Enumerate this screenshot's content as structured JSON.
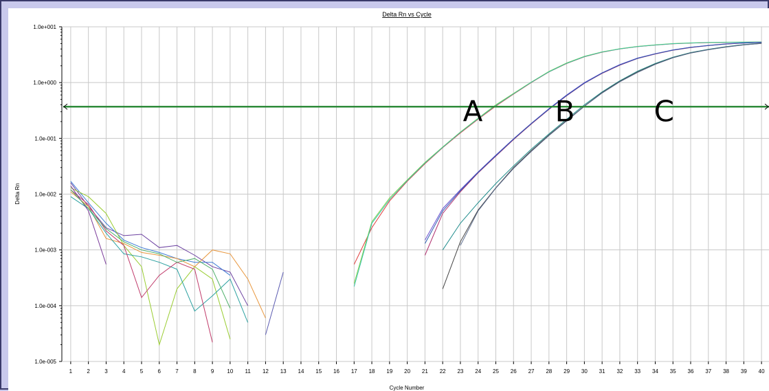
{
  "chart_data": {
    "type": "line",
    "title": "Delta Rn vs Cycle",
    "xlabel": "Cycle Number",
    "ylabel": "Delta Rn",
    "yscale": "log",
    "xlim": [
      0.5,
      40.5
    ],
    "ylim": [
      1e-05,
      10
    ],
    "grid": true,
    "x_ticks": [
      "1",
      "2",
      "3",
      "4",
      "5",
      "6",
      "7",
      "8",
      "9",
      "10",
      "11",
      "12",
      "13",
      "14",
      "15",
      "16",
      "17",
      "18",
      "19",
      "20",
      "21",
      "22",
      "23",
      "24",
      "25",
      "26",
      "27",
      "28",
      "29",
      "30",
      "31",
      "32",
      "33",
      "34",
      "35",
      "36",
      "37",
      "38",
      "39",
      "40"
    ],
    "y_ticks": [
      {
        "value": 10,
        "label": "1.0e+001"
      },
      {
        "value": 1,
        "label": "1.0e+000"
      },
      {
        "value": 0.1,
        "label": "1.0e-001"
      },
      {
        "value": 0.01,
        "label": "1.0e-002"
      },
      {
        "value": 0.001,
        "label": "1.0e-003"
      },
      {
        "value": 0.0001,
        "label": "1.0e-004"
      },
      {
        "value": 1e-05,
        "label": "1.0e-005"
      }
    ],
    "threshold": {
      "value": 0.37,
      "color": "#2e8b3a"
    },
    "annotations": [
      {
        "text": "A",
        "x": 23.7,
        "y": 0.3
      },
      {
        "text": "B",
        "x": 28.9,
        "y": 0.3
      },
      {
        "text": "C",
        "x": 34.5,
        "y": 0.3
      }
    ],
    "series": [
      {
        "color": "#e03c3c",
        "points": [
          [
            17,
            0.00055
          ],
          [
            18,
            0.0025
          ],
          [
            19,
            0.0075
          ],
          [
            20,
            0.017
          ],
          [
            21,
            0.035
          ],
          [
            22,
            0.068
          ],
          [
            23,
            0.125
          ],
          [
            24,
            0.22
          ],
          [
            25,
            0.38
          ],
          [
            26,
            0.62
          ],
          [
            27,
            1.0
          ],
          [
            28,
            1.55
          ],
          [
            29,
            2.2
          ],
          [
            30,
            2.9
          ],
          [
            31,
            3.5
          ],
          [
            32,
            4.0
          ],
          [
            33,
            4.4
          ],
          [
            34,
            4.7
          ],
          [
            35,
            4.95
          ],
          [
            36,
            5.1
          ],
          [
            37,
            5.2
          ],
          [
            38,
            5.25
          ],
          [
            39,
            5.28
          ],
          [
            40,
            5.3
          ]
        ]
      },
      {
        "color": "#7fd14a",
        "points": [
          [
            17,
            0.00025
          ],
          [
            18,
            0.0032
          ],
          [
            19,
            0.0085
          ],
          [
            20,
            0.018
          ],
          [
            21,
            0.037
          ],
          [
            22,
            0.07
          ],
          [
            23,
            0.13
          ],
          [
            24,
            0.23
          ],
          [
            25,
            0.4
          ],
          [
            26,
            0.64
          ],
          [
            27,
            1.02
          ],
          [
            28,
            1.58
          ],
          [
            29,
            2.25
          ],
          [
            30,
            2.95
          ],
          [
            31,
            3.55
          ],
          [
            32,
            4.05
          ],
          [
            33,
            4.45
          ],
          [
            34,
            4.75
          ],
          [
            35,
            5.0
          ],
          [
            36,
            5.15
          ],
          [
            37,
            5.25
          ],
          [
            38,
            5.3
          ],
          [
            39,
            5.33
          ],
          [
            40,
            5.35
          ]
        ]
      },
      {
        "color": "#3ac4a8",
        "points": [
          [
            17,
            0.00022
          ],
          [
            18,
            0.003
          ],
          [
            19,
            0.008
          ],
          [
            20,
            0.0175
          ],
          [
            21,
            0.036
          ],
          [
            22,
            0.069
          ],
          [
            23,
            0.128
          ],
          [
            24,
            0.225
          ],
          [
            25,
            0.39
          ],
          [
            26,
            0.63
          ],
          [
            27,
            1.01
          ],
          [
            28,
            1.56
          ],
          [
            29,
            2.22
          ],
          [
            30,
            2.92
          ],
          [
            31,
            3.52
          ],
          [
            32,
            4.02
          ],
          [
            33,
            4.42
          ],
          [
            34,
            4.72
          ],
          [
            35,
            4.97
          ],
          [
            36,
            5.12
          ],
          [
            37,
            5.22
          ],
          [
            38,
            5.27
          ],
          [
            39,
            5.3
          ],
          [
            40,
            5.32
          ]
        ]
      },
      {
        "color": "#6a4fd0",
        "points": [
          [
            21,
            0.0015
          ],
          [
            22,
            0.0055
          ],
          [
            23,
            0.012
          ],
          [
            24,
            0.025
          ],
          [
            25,
            0.05
          ],
          [
            26,
            0.098
          ],
          [
            27,
            0.185
          ],
          [
            28,
            0.34
          ],
          [
            29,
            0.6
          ],
          [
            30,
            1.0
          ],
          [
            31,
            1.5
          ],
          [
            32,
            2.1
          ],
          [
            33,
            2.75
          ],
          [
            34,
            3.3
          ],
          [
            35,
            3.85
          ],
          [
            36,
            4.3
          ],
          [
            37,
            4.65
          ],
          [
            38,
            4.95
          ],
          [
            39,
            5.15
          ],
          [
            40,
            5.3
          ]
        ]
      },
      {
        "color": "#b03070",
        "points": [
          [
            21,
            0.0008
          ],
          [
            22,
            0.0045
          ],
          [
            23,
            0.011
          ],
          [
            24,
            0.024
          ],
          [
            25,
            0.048
          ],
          [
            26,
            0.095
          ],
          [
            27,
            0.18
          ],
          [
            28,
            0.33
          ],
          [
            29,
            0.58
          ],
          [
            30,
            0.97
          ],
          [
            31,
            1.46
          ],
          [
            32,
            2.05
          ],
          [
            33,
            2.7
          ],
          [
            34,
            3.25
          ],
          [
            35,
            3.8
          ],
          [
            36,
            4.25
          ],
          [
            37,
            4.6
          ],
          [
            38,
            4.9
          ],
          [
            39,
            5.1
          ],
          [
            40,
            5.25
          ]
        ]
      },
      {
        "color": "#2a5ab0",
        "points": [
          [
            21,
            0.0013
          ],
          [
            22,
            0.005
          ],
          [
            23,
            0.0115
          ],
          [
            24,
            0.0245
          ],
          [
            25,
            0.049
          ],
          [
            26,
            0.097
          ],
          [
            27,
            0.183
          ],
          [
            28,
            0.335
          ],
          [
            29,
            0.59
          ],
          [
            30,
            0.98
          ],
          [
            31,
            1.48
          ],
          [
            32,
            2.08
          ],
          [
            33,
            2.72
          ],
          [
            34,
            3.28
          ],
          [
            35,
            3.82
          ],
          [
            36,
            4.28
          ],
          [
            37,
            4.62
          ],
          [
            38,
            4.92
          ],
          [
            39,
            5.12
          ],
          [
            40,
            5.28
          ]
        ]
      },
      {
        "color": "#1f8c8c",
        "points": [
          [
            22,
            0.001
          ],
          [
            23,
            0.003
          ],
          [
            24,
            0.007
          ],
          [
            25,
            0.0155
          ],
          [
            26,
            0.032
          ],
          [
            27,
            0.064
          ],
          [
            28,
            0.12
          ],
          [
            29,
            0.22
          ],
          [
            30,
            0.4
          ],
          [
            31,
            0.68
          ],
          [
            32,
            1.08
          ],
          [
            33,
            1.6
          ],
          [
            34,
            2.2
          ],
          [
            35,
            2.85
          ],
          [
            36,
            3.45
          ],
          [
            37,
            3.95
          ],
          [
            38,
            4.4
          ],
          [
            39,
            4.8
          ],
          [
            40,
            5.1
          ]
        ]
      },
      {
        "color": "#444444",
        "points": [
          [
            22,
            0.0002
          ],
          [
            23,
            0.0014
          ],
          [
            24,
            0.0052
          ],
          [
            25,
            0.013
          ],
          [
            26,
            0.03
          ],
          [
            27,
            0.06
          ],
          [
            28,
            0.115
          ],
          [
            29,
            0.21
          ],
          [
            30,
            0.38
          ],
          [
            31,
            0.66
          ],
          [
            32,
            1.05
          ],
          [
            33,
            1.55
          ],
          [
            34,
            2.15
          ],
          [
            35,
            2.8
          ],
          [
            36,
            3.4
          ],
          [
            37,
            3.9
          ],
          [
            38,
            4.35
          ],
          [
            39,
            4.75
          ],
          [
            40,
            5.05
          ]
        ]
      },
      {
        "color": "#5a6a8a",
        "points": [
          [
            23,
            0.0012
          ],
          [
            24,
            0.005
          ],
          [
            25,
            0.0128
          ],
          [
            26,
            0.029
          ],
          [
            27,
            0.058
          ],
          [
            28,
            0.112
          ],
          [
            29,
            0.205
          ],
          [
            30,
            0.375
          ],
          [
            31,
            0.65
          ],
          [
            32,
            1.03
          ],
          [
            33,
            1.52
          ],
          [
            34,
            2.12
          ],
          [
            35,
            2.78
          ],
          [
            36,
            3.38
          ],
          [
            37,
            3.88
          ],
          [
            38,
            4.33
          ],
          [
            39,
            4.73
          ],
          [
            40,
            5.03
          ]
        ]
      },
      {
        "color": "#6a3fa0",
        "points": [
          [
            1,
            0.016
          ],
          [
            2,
            0.006
          ],
          [
            3,
            0.0025
          ],
          [
            4,
            0.0018
          ],
          [
            5,
            0.0019
          ],
          [
            6,
            0.0011
          ],
          [
            7,
            0.0012
          ],
          [
            8,
            0.0008
          ],
          [
            9,
            0.0005
          ],
          [
            10,
            0.0004
          ],
          [
            11,
            0.0001
          ]
        ]
      },
      {
        "color": "#3b7bd4",
        "points": [
          [
            1,
            0.017
          ],
          [
            2,
            0.007
          ],
          [
            3,
            0.003
          ],
          [
            4,
            0.0015
          ],
          [
            5,
            0.0011
          ],
          [
            6,
            0.0009
          ],
          [
            7,
            0.0007
          ],
          [
            8,
            0.0006
          ],
          [
            9,
            0.0006
          ],
          [
            10,
            0.00035
          ]
        ]
      },
      {
        "color": "#9acd32",
        "points": [
          [
            1,
            0.013
          ],
          [
            2,
            0.009
          ],
          [
            3,
            0.0045
          ],
          [
            4,
            0.0012
          ],
          [
            5,
            0.0005
          ],
          [
            6,
            2e-05
          ],
          [
            7,
            0.0002
          ],
          [
            8,
            0.0005
          ],
          [
            9,
            0.0003
          ],
          [
            10,
            2.5e-05
          ]
        ]
      },
      {
        "color": "#e8963c",
        "points": [
          [
            1,
            0.011
          ],
          [
            2,
            0.006
          ],
          [
            3,
            0.0016
          ],
          [
            4,
            0.0013
          ],
          [
            5,
            0.0009
          ],
          [
            6,
            0.0008
          ],
          [
            7,
            0.0007
          ],
          [
            8,
            0.0005
          ],
          [
            9,
            0.001
          ],
          [
            10,
            0.00085
          ],
          [
            11,
            0.0003
          ],
          [
            12,
            6e-05
          ]
        ]
      },
      {
        "color": "#2aa0a0",
        "points": [
          [
            1,
            0.009
          ],
          [
            2,
            0.0055
          ],
          [
            3,
            0.002
          ],
          [
            4,
            0.00085
          ],
          [
            5,
            0.00075
          ],
          [
            6,
            0.0006
          ],
          [
            7,
            0.00045
          ],
          [
            8,
            8e-05
          ],
          [
            9,
            0.00015
          ],
          [
            10,
            0.0003
          ],
          [
            11,
            5e-05
          ]
        ]
      },
      {
        "color": "#c03a6a",
        "points": [
          [
            1,
            0.012
          ],
          [
            2,
            0.0065
          ],
          [
            3,
            0.0022
          ],
          [
            4,
            0.0012
          ],
          [
            5,
            0.00014
          ],
          [
            6,
            0.00035
          ],
          [
            7,
            0.0006
          ],
          [
            8,
            0.00045
          ],
          [
            9,
            2.2e-05
          ]
        ]
      },
      {
        "color": "#7a3a9a",
        "points": [
          [
            1,
            0.014
          ],
          [
            2,
            0.005
          ],
          [
            3,
            0.00055
          ]
        ]
      },
      {
        "color": "#5a5ab0",
        "points": [
          [
            12,
            3e-05
          ],
          [
            13,
            0.0004
          ]
        ]
      },
      {
        "color": "#4fb06a",
        "points": [
          [
            1,
            0.012
          ],
          [
            2,
            0.0055
          ],
          [
            3,
            0.0024
          ],
          [
            4,
            0.0014
          ],
          [
            5,
            0.001
          ],
          [
            6,
            0.00085
          ],
          [
            7,
            0.0006
          ],
          [
            8,
            0.0007
          ],
          [
            9,
            0.00045
          ],
          [
            10,
            9e-05
          ]
        ]
      }
    ]
  }
}
